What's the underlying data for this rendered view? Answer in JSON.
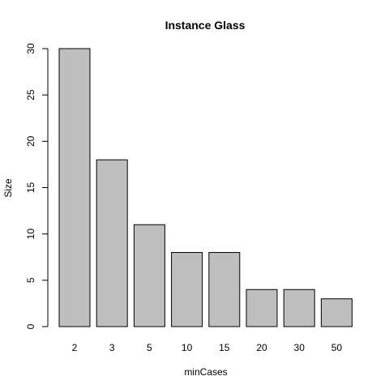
{
  "chart_data": {
    "type": "bar",
    "title": "Instance Glass",
    "xlabel": "minCases",
    "ylabel": "Size",
    "categories": [
      "2",
      "3",
      "5",
      "10",
      "15",
      "20",
      "30",
      "50"
    ],
    "values": [
      30,
      18,
      11,
      8,
      8,
      4,
      4,
      3
    ],
    "ylim": [
      0,
      30
    ],
    "yticks": [
      0,
      5,
      10,
      15,
      20,
      25,
      30
    ],
    "grid": false,
    "bar_color": "#bebebe",
    "border_color": "#000000"
  }
}
